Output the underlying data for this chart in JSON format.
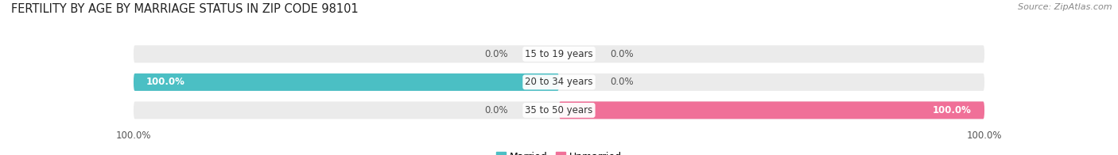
{
  "title": "FERTILITY BY AGE BY MARRIAGE STATUS IN ZIP CODE 98101",
  "source": "Source: ZipAtlas.com",
  "categories": [
    "15 to 19 years",
    "20 to 34 years",
    "35 to 50 years"
  ],
  "married": [
    0.0,
    100.0,
    0.0
  ],
  "unmarried": [
    0.0,
    0.0,
    100.0
  ],
  "married_color": "#4BBFC4",
  "unmarried_color": "#F07098",
  "bar_bg_color": "#EBEBEB",
  "bar_height": 0.62,
  "title_fontsize": 10.5,
  "source_fontsize": 8,
  "label_fontsize": 8.5,
  "category_fontsize": 8.5,
  "legend_fontsize": 9,
  "axis_max": 100.0,
  "background_color": "#FFFFFF",
  "fig_width": 14.06,
  "fig_height": 1.96
}
